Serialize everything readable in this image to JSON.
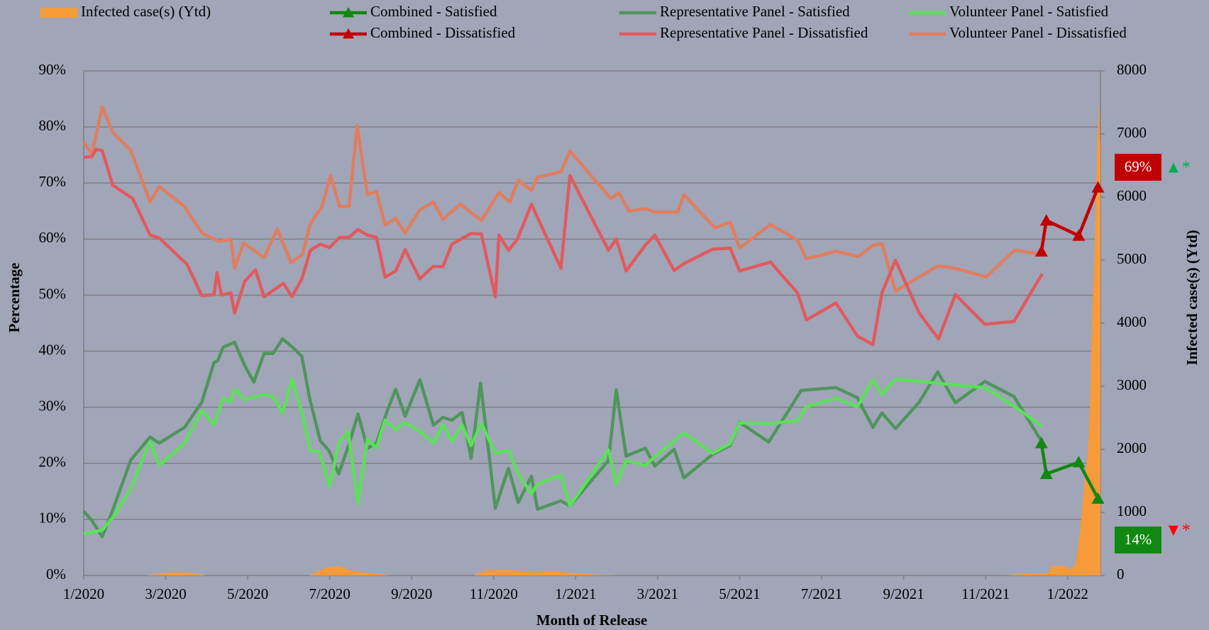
{
  "chart_data": {
    "type": "line",
    "x_label": "Month of Release",
    "y_label": "Percentage",
    "y2_label": "Infected case(s) (Ytd)",
    "xlim": [
      0,
      24.8
    ],
    "xticks": [
      {
        "value": 0,
        "label": "1/2020"
      },
      {
        "value": 2,
        "label": "3/2020"
      },
      {
        "value": 4,
        "label": "5/2020"
      },
      {
        "value": 6,
        "label": "7/2020"
      },
      {
        "value": 8,
        "label": "9/2020"
      },
      {
        "value": 10,
        "label": "11/2020"
      },
      {
        "value": 12,
        "label": "1/2021"
      },
      {
        "value": 14,
        "label": "3/2021"
      },
      {
        "value": 16,
        "label": "5/2021"
      },
      {
        "value": 18,
        "label": "7/2021"
      },
      {
        "value": 20,
        "label": "9/2021"
      },
      {
        "value": 22,
        "label": "11/2021"
      },
      {
        "value": 24,
        "label": "1/2022"
      }
    ],
    "ylim": [
      0,
      90
    ],
    "yticks": [
      {
        "value": 0,
        "label": "0%"
      },
      {
        "value": 10,
        "label": "10%"
      },
      {
        "value": 20,
        "label": "20%"
      },
      {
        "value": 30,
        "label": "30%"
      },
      {
        "value": 40,
        "label": "40%"
      },
      {
        "value": 50,
        "label": "50%"
      },
      {
        "value": 60,
        "label": "60%"
      },
      {
        "value": 70,
        "label": "70%"
      },
      {
        "value": 80,
        "label": "80%"
      },
      {
        "value": 90,
        "label": "90%"
      }
    ],
    "y2lim": [
      0,
      8000
    ],
    "y2ticks": [
      0,
      1000,
      2000,
      3000,
      4000,
      5000,
      6000,
      7000,
      8000
    ],
    "grid": true,
    "legend": "top",
    "series": [
      {
        "name": "Infected case(s) (Ytd)",
        "type": "area",
        "axis": "y2",
        "color": "#f79a3a",
        "x": [
          0,
          1.5,
          2,
          2.3,
          2.6,
          3,
          5.5,
          5.9,
          6.2,
          6.5,
          7,
          7.5,
          9.5,
          9.8,
          10.3,
          11,
          11.6,
          12,
          12.5,
          13,
          14,
          14.6,
          22.5,
          23,
          23.5,
          23.6,
          23.9,
          24.1,
          24.2,
          24.3,
          24.4,
          24.5,
          24.55,
          24.6,
          24.65,
          24.7,
          24.75,
          24.8
        ],
        "values": [
          0,
          0,
          40,
          50,
          40,
          0,
          0,
          120,
          150,
          80,
          30,
          0,
          0,
          80,
          90,
          50,
          60,
          30,
          10,
          0,
          0,
          0,
          0,
          30,
          20,
          150,
          150,
          100,
          200,
          700,
          1400,
          2000,
          2800,
          4200,
          5000,
          6200,
          7500,
          6800
        ]
      },
      {
        "name": "Combined - Satisfied",
        "marker": "triangle",
        "color": "#118811",
        "x": [
          23.36,
          23.48,
          24.27,
          24.74
        ],
        "values": [
          23.6,
          18.1,
          20.2,
          13.7
        ]
      },
      {
        "name": "Combined - Dissatisfied",
        "marker": "triangle",
        "color": "#c00000",
        "x": [
          23.36,
          23.48,
          24.27,
          24.74
        ],
        "values": [
          57.8,
          63.3,
          60.6,
          69.2
        ]
      },
      {
        "name": "Representative Panel - Satisfied",
        "color": "#4f955c",
        "x": [
          0,
          0.2,
          0.45,
          0.71,
          1.15,
          1.62,
          1.84,
          2.46,
          2.88,
          3.18,
          3.27,
          3.4,
          3.68,
          3.93,
          4.15,
          4.4,
          4.62,
          4.85,
          5.08,
          5.32,
          5.51,
          5.77,
          5.98,
          6.22,
          6.47,
          6.69,
          6.92,
          7.14,
          7.41,
          7.61,
          7.84,
          8.2,
          8.53,
          8.76,
          8.98,
          9.23,
          9.45,
          9.68,
          10.04,
          10.36,
          10.6,
          10.92,
          11.07,
          11.64,
          11.86,
          12.8,
          12.99,
          13.23,
          13.7,
          13.93,
          14.4,
          14.64,
          15.34,
          15.77,
          16,
          16.71,
          17.5,
          18.35,
          18.87,
          19.25,
          19.47,
          19.8,
          20.38,
          20.83,
          21.26,
          21.98,
          22.69,
          23.33
        ],
        "values": [
          11.4,
          9.8,
          6.9,
          11.7,
          20.6,
          24.7,
          23.6,
          26.4,
          30.9,
          38,
          38.3,
          40.7,
          41.6,
          37.4,
          34.5,
          39.6,
          39.6,
          42.2,
          40.8,
          39.1,
          31.6,
          24,
          22.3,
          18.1,
          23.4,
          28.8,
          22.7,
          23.6,
          29.5,
          33.2,
          28.4,
          34.9,
          26.8,
          28.2,
          27.7,
          29.1,
          20.9,
          34.3,
          12,
          19.1,
          13,
          17.7,
          11.8,
          13.3,
          12.4,
          20.5,
          33.1,
          21.3,
          22.7,
          19.5,
          22.5,
          17.4,
          21.6,
          23.2,
          27.3,
          23.8,
          33,
          33.5,
          31.7,
          26.4,
          29,
          26.2,
          30.9,
          36.3,
          30.8,
          34.6,
          31.9,
          24.3
        ]
      },
      {
        "name": "Representative Panel - Dissatisfied",
        "color": "#e05a5e",
        "x": [
          0,
          0.2,
          0.3,
          0.45,
          0.71,
          1.2,
          1.62,
          1.84,
          2.52,
          2.88,
          3.18,
          3.25,
          3.36,
          3.59,
          3.68,
          3.93,
          4.19,
          4.4,
          4.87,
          5.08,
          5.32,
          5.53,
          5.77,
          6,
          6.24,
          6.47,
          6.69,
          6.92,
          7.14,
          7.35,
          7.61,
          7.84,
          8.2,
          8.52,
          8.76,
          8.98,
          9.45,
          9.7,
          10.04,
          10.13,
          10.36,
          10.58,
          10.92,
          11.64,
          11.86,
          12.8,
          12.99,
          13.23,
          13.7,
          13.93,
          14.4,
          14.64,
          15.34,
          15.77,
          16,
          16.75,
          17.41,
          17.63,
          18.35,
          18.87,
          19.25,
          19.47,
          19.8,
          20.38,
          20.85,
          21.26,
          21.98,
          22.69,
          23.38
        ],
        "values": [
          74.6,
          74.7,
          76,
          75.8,
          69.6,
          67.2,
          60.7,
          60.2,
          55.5,
          49.9,
          50.1,
          54,
          50,
          50.4,
          46.8,
          52.5,
          54.5,
          49.7,
          52.1,
          49.7,
          52.9,
          58,
          59.1,
          58.5,
          60.3,
          60.3,
          61.7,
          60.7,
          60.3,
          53.2,
          54.3,
          58.1,
          52.9,
          55.1,
          55.1,
          59.1,
          61,
          60.9,
          49.7,
          60.7,
          58,
          60,
          66.2,
          54.8,
          71.3,
          58,
          60,
          54.3,
          58.9,
          60.7,
          54.4,
          55.6,
          58.2,
          58.4,
          54.3,
          55.9,
          50.4,
          45.6,
          48.6,
          42.7,
          41.2,
          50.4,
          56.2,
          46.8,
          42.2,
          50.1,
          44.8,
          45.3,
          53.8
        ]
      },
      {
        "name": "Volunteer Panel - Satisfied",
        "color": "#5ce05a",
        "x": [
          0,
          0.45,
          0.71,
          1.15,
          1.62,
          1.84,
          2.46,
          2.88,
          3.18,
          3.4,
          3.59,
          3.68,
          3.93,
          4.4,
          4.62,
          4.85,
          5.08,
          5.32,
          5.53,
          5.75,
          6,
          6.22,
          6.45,
          6.69,
          6.92,
          7.14,
          7.35,
          7.61,
          7.84,
          8.2,
          8.53,
          8.76,
          8.98,
          9.23,
          9.45,
          9.7,
          10.04,
          10.36,
          10.6,
          10.92,
          11.07,
          11.64,
          11.86,
          12.8,
          12.99,
          13.23,
          13.7,
          13.93,
          14.64,
          15.34,
          15.77,
          16,
          16.75,
          17.41,
          17.63,
          18.35,
          18.87,
          19.25,
          19.47,
          19.8,
          21.98,
          22.69,
          23.38
        ],
        "values": [
          7.4,
          8.1,
          10.3,
          15.5,
          23.9,
          19.6,
          23.6,
          29.4,
          26.9,
          31.6,
          31,
          33.2,
          31.3,
          32.3,
          31.9,
          29,
          35,
          29.1,
          22.3,
          22.1,
          15.8,
          23.6,
          25.7,
          12.8,
          24.3,
          22.7,
          27.7,
          26,
          27.3,
          25.7,
          23.6,
          26.9,
          23.9,
          26.8,
          23.2,
          27.1,
          21.8,
          22.3,
          18.1,
          14.6,
          16.3,
          17.9,
          12.4,
          22.4,
          16.3,
          20.5,
          19.6,
          21.2,
          25.4,
          21.8,
          23.5,
          27.2,
          27.1,
          27.6,
          30.1,
          31.6,
          30.1,
          34.9,
          32.3,
          35,
          33.5,
          30.2,
          26.6
        ]
      },
      {
        "name": "Volunteer Panel - Dissatisfied",
        "color": "#e07e5e",
        "x": [
          0,
          0.2,
          0.45,
          0.71,
          1.15,
          1.62,
          1.84,
          2.46,
          2.88,
          3.3,
          3.59,
          3.68,
          3.9,
          4.4,
          4.72,
          5.06,
          5.34,
          5.53,
          5.81,
          6.02,
          6.24,
          6.47,
          6.67,
          6.92,
          7.14,
          7.35,
          7.61,
          7.84,
          8.2,
          8.53,
          8.76,
          9.19,
          9.7,
          10.13,
          10.39,
          10.6,
          10.92,
          11.07,
          11.64,
          11.86,
          12.86,
          13.05,
          13.3,
          13.7,
          13.93,
          14.49,
          14.64,
          15.4,
          15.77,
          16,
          16.75,
          17.41,
          17.63,
          18.35,
          18.9,
          19.25,
          19.47,
          19.8,
          20.83,
          21.26,
          22.01,
          22.7,
          23.38
        ],
        "values": [
          77.3,
          75.1,
          83.6,
          79,
          75.8,
          66.6,
          69.4,
          65.8,
          61.1,
          59.6,
          60,
          54.8,
          59.3,
          56.7,
          61.8,
          55.8,
          57.3,
          62.8,
          65.8,
          71.3,
          65.8,
          65.8,
          80.2,
          67.9,
          68.5,
          62.5,
          63.7,
          61.1,
          65.2,
          66.6,
          63.5,
          66.2,
          63.3,
          68.3,
          66.6,
          70.5,
          68.7,
          71,
          72,
          75.7,
          67.2,
          68.3,
          65,
          65.4,
          64.8,
          64.8,
          67.9,
          62,
          63,
          58.4,
          62.6,
          59.8,
          56.5,
          57.8,
          56.9,
          58.9,
          59.2,
          50.7,
          55.2,
          54.8,
          53.2,
          58,
          57.3
        ]
      }
    ],
    "annotations": [
      {
        "text": "69%",
        "color": "#c00000",
        "boxed": true
      },
      {
        "text": "▲*",
        "color": "#00b050",
        "boxed": false
      },
      {
        "text": "14%",
        "color": "#118811",
        "boxed": true
      },
      {
        "text": "▼*",
        "color": "#ff0000",
        "boxed": false
      }
    ]
  }
}
